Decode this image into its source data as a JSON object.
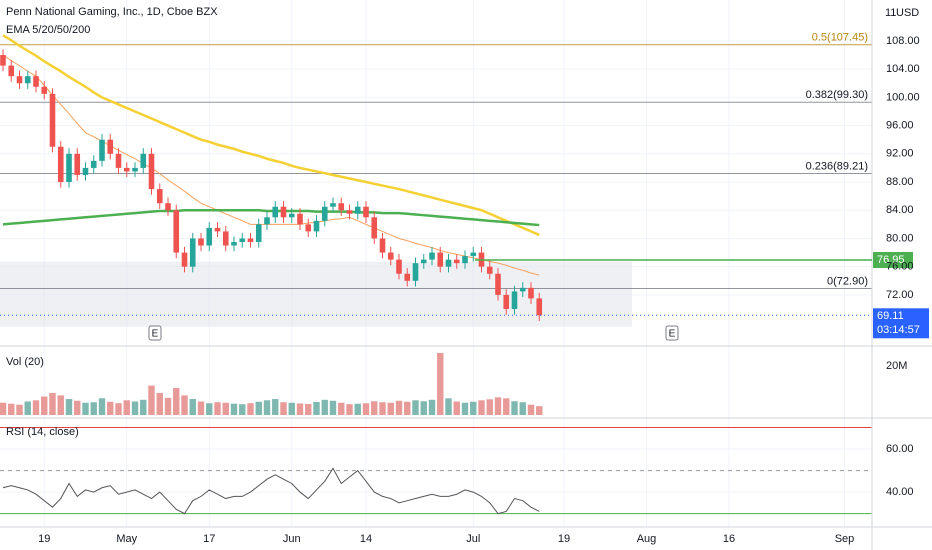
{
  "time_axis": {
    "categories": [
      null,
      null,
      null,
      null,
      null,
      "19",
      null,
      null,
      null,
      null,
      null,
      null,
      null,
      null,
      null,
      "May",
      null,
      null,
      null,
      null,
      null,
      null,
      null,
      null,
      null,
      "17",
      null,
      null,
      null,
      null,
      null,
      null,
      null,
      null,
      null,
      "Jun",
      null,
      null,
      null,
      null,
      null,
      null,
      null,
      null,
      "14",
      null,
      null,
      null,
      null,
      null,
      null,
      null,
      null,
      null,
      null,
      null,
      null,
      "Jul",
      null,
      null,
      null,
      null,
      null,
      null,
      null,
      null,
      null,
      null,
      "19",
      null,
      null,
      null,
      null,
      null,
      null,
      null,
      null,
      null,
      "Aug",
      null,
      null,
      null,
      null,
      null,
      null,
      null,
      null,
      null,
      "16",
      null,
      null,
      null,
      null,
      null,
      null,
      null,
      null,
      null,
      null,
      null,
      null,
      null,
      "Sep",
      null,
      null,
      null,
      null,
      null
    ]
  },
  "chart_data": [
    {
      "type": "candlestick",
      "title": "Penn National Gaming, Inc., 1D, Cboe BZX",
      "subtitle": "EMA 5/20/50/200",
      "badge": "11",
      "currency": "USD",
      "up_color": "#26a69a",
      "down_color": "#ef5350",
      "open": [
        106,
        104.5,
        103,
        102,
        103,
        101.5,
        100.5,
        93,
        88,
        92,
        89,
        90,
        91,
        94,
        92,
        90,
        89.5,
        90,
        92,
        87,
        85,
        84,
        78,
        76,
        80,
        79,
        81.5,
        81,
        79,
        79.5,
        80,
        79.5,
        82,
        83,
        84.5,
        83,
        83.5,
        82,
        81,
        82.5,
        84.5,
        85,
        84,
        83.5,
        84.5,
        83,
        80,
        78,
        77,
        75,
        74,
        76.5,
        77,
        78,
        76,
        77,
        76.5,
        77.5,
        78,
        76,
        75,
        72,
        70,
        72.5,
        73,
        71.5
      ],
      "high": [
        106.8,
        105.3,
        103.8,
        103.8,
        103.8,
        102.3,
        101.3,
        93.8,
        92.8,
        92.8,
        90.8,
        91.8,
        94.8,
        94.8,
        92.8,
        90.8,
        90.8,
        92.8,
        92.8,
        87.8,
        85.8,
        84.8,
        78.8,
        80.8,
        80.8,
        82.3,
        82.3,
        81.8,
        80.3,
        80.8,
        80.8,
        82.8,
        83.8,
        85.3,
        85.3,
        84.3,
        84.3,
        82.8,
        83.3,
        85.3,
        85.8,
        85.8,
        84.8,
        85.3,
        85.3,
        83.8,
        80.8,
        78.8,
        77.8,
        75.8,
        77.3,
        77.8,
        78.8,
        78.8,
        77.8,
        77.8,
        78.3,
        78.8,
        78.8,
        76.8,
        75.8,
        72.8,
        73.3,
        73.8,
        73.8,
        72.3
      ],
      "low": [
        103.7,
        102.2,
        101.2,
        101.2,
        100.7,
        99.7,
        92.2,
        87.2,
        87.2,
        88.2,
        88.2,
        89.2,
        90.2,
        91.2,
        89.2,
        88.7,
        88.7,
        89.2,
        86.2,
        84.2,
        83.2,
        77.2,
        75.2,
        75.2,
        78.2,
        78.2,
        80.2,
        78.2,
        78.2,
        78.7,
        78.7,
        78.7,
        81.2,
        82.2,
        82.2,
        82.2,
        81.2,
        80.2,
        80.2,
        81.7,
        83.7,
        83.2,
        82.7,
        82.7,
        82.2,
        79.2,
        77.2,
        76.2,
        74.2,
        73.2,
        73.2,
        75.7,
        76.2,
        75.2,
        75.2,
        75.7,
        75.7,
        76.7,
        75.2,
        74.2,
        71.2,
        69.2,
        69.2,
        71.7,
        70.7,
        68.3
      ],
      "close": [
        104.5,
        103,
        102,
        103,
        101.5,
        100.5,
        93,
        88,
        92,
        89,
        90,
        91,
        94,
        92,
        90,
        89.5,
        90,
        92,
        87,
        85,
        84,
        78,
        76,
        80,
        79,
        81.5,
        81,
        79,
        79.5,
        80,
        79.5,
        82,
        83,
        84.5,
        83,
        83.5,
        82,
        81,
        82.5,
        84.5,
        85,
        84,
        83.5,
        84.5,
        83,
        80,
        78,
        77,
        75,
        74,
        76.5,
        77,
        78,
        76,
        77,
        76.5,
        77.5,
        78,
        76,
        75,
        72,
        70,
        72.5,
        73,
        71.5,
        69.11
      ],
      "series": [
        {
          "color": "#f7a15e",
          "values": [
            106,
            105.2,
            104.5,
            103.7,
            103,
            101.7,
            100.3,
            99,
            97.7,
            96.3,
            95,
            94.4,
            93.8,
            93.1,
            92.5,
            91.9,
            91.3,
            90.6,
            90,
            89.2,
            88.3,
            87.5,
            86.7,
            85.8,
            85,
            84.5,
            84,
            83.5,
            83,
            82.5,
            82,
            82,
            82,
            82,
            82,
            82,
            82,
            82.2,
            82.3,
            82.5,
            82.7,
            82.8,
            83,
            82.5,
            82,
            81.5,
            81,
            80.5,
            80,
            79.7,
            79.3,
            79,
            78.7,
            78.3,
            78,
            77.75,
            77.5,
            77.25,
            77,
            76.75,
            76.5,
            76.2,
            75.8,
            75.5,
            75.1,
            74.8
          ]
        },
        {
          "color": "#f5d033",
          "values": [
            108.8,
            108.1,
            107.3,
            106.6,
            105.9,
            105.1,
            104.4,
            103.7,
            102.9,
            102.2,
            101.5,
            100.7,
            100.0,
            99.5,
            99.0,
            98.5,
            98.0,
            97.5,
            97.0,
            96.5,
            96.0,
            95.5,
            95.0,
            94.5,
            94.0,
            93.7,
            93.3,
            93.0,
            92.7,
            92.3,
            92.0,
            91.7,
            91.3,
            91.0,
            90.7,
            90.3,
            90.0,
            89.75,
            89.5,
            89.25,
            89.0,
            88.75,
            88.5,
            88.25,
            88.0,
            87.75,
            87.5,
            87.25,
            87.0,
            86.7,
            86.4,
            86.1,
            85.8,
            85.5,
            85.2,
            84.9,
            84.6,
            84.3,
            84.0,
            83.5,
            83.0,
            82.5,
            82.0,
            81.5,
            81.0,
            80.5
          ]
        },
        {
          "color": "#4caf50",
          "values": [
            82.0,
            82.1,
            82.2,
            82.3,
            82.4,
            82.5,
            82.6,
            82.7,
            82.8,
            82.9,
            83.0,
            83.1,
            83.2,
            83.3,
            83.4,
            83.5,
            83.6,
            83.7,
            83.8,
            83.9,
            83.9,
            83.9,
            84.0,
            84.0,
            84.0,
            84.0,
            84.0,
            84.0,
            84.0,
            84.0,
            84.0,
            84.0,
            83.9,
            83.9,
            83.9,
            83.9,
            83.9,
            83.9,
            83.8,
            83.8,
            83.8,
            83.8,
            83.8,
            83.7,
            83.7,
            83.7,
            83.6,
            83.6,
            83.6,
            83.5,
            83.4,
            83.3,
            83.2,
            83.1,
            83.0,
            82.9,
            82.8,
            82.7,
            82.6,
            82.5,
            82.4,
            82.3,
            82.2,
            82.1,
            82.0,
            81.9
          ]
        }
      ],
      "ylim": [
        64.9,
        113.8
      ],
      "yticks": [
        {
          "value": 108,
          "label": "108.00"
        },
        {
          "value": 104,
          "label": "104.00"
        },
        {
          "value": 100,
          "label": "100.00"
        },
        {
          "value": 96,
          "label": "96.00"
        },
        {
          "value": 92,
          "label": "92.00"
        },
        {
          "value": 88,
          "label": "88.00"
        },
        {
          "value": 84,
          "label": "84.00"
        },
        {
          "value": 80,
          "label": "80.00"
        },
        {
          "value": 76,
          "label": "76.00"
        },
        {
          "value": 72,
          "label": "72.00"
        }
      ],
      "fib_levels": [
        {
          "label": "0.5(107.45)",
          "value": 107.45,
          "color": "#b8860b"
        },
        {
          "label": "0.382(99.30)",
          "value": 99.3,
          "color": "#787b86"
        },
        {
          "label": "0.236(89.21)",
          "value": 89.21,
          "color": "#787b86"
        },
        {
          "label": "0(72.90)",
          "value": 72.9,
          "color": "#787b86"
        }
      ],
      "hline": {
        "value": 76.95,
        "color": "#4caf50"
      },
      "zone": {
        "low": 67.5,
        "high": 76.7
      },
      "last_price": {
        "value": 69.11,
        "countdown": "03:14:57",
        "color": "#2962ff"
      },
      "earnings_markers": [
        "E",
        "E"
      ],
      "grid": true
    },
    {
      "type": "bar",
      "title": "Vol (20)",
      "values": [
        5000000,
        4600000,
        4200000,
        5500000,
        6000000,
        7500000,
        9000000,
        8000000,
        6500000,
        5800000,
        5000000,
        5200000,
        6800000,
        5400000,
        4800000,
        6000000,
        5500000,
        6200000,
        12000000,
        9000000,
        7000000,
        11000000,
        8000000,
        6500000,
        5500000,
        4800000,
        5200000,
        5000000,
        4600000,
        4400000,
        4800000,
        5400000,
        6000000,
        6500000,
        5200000,
        5000000,
        4700000,
        4500000,
        5300000,
        6200000,
        5800000,
        5000000,
        4400000,
        4600000,
        4800000,
        5600000,
        5200000,
        5000000,
        5800000,
        5400000,
        6000000,
        5600000,
        6200000,
        25300000,
        6800000,
        5500000,
        5000000,
        5400000,
        6000000,
        6400000,
        7200000,
        6800000,
        5600000,
        5200000,
        4200000,
        3600000
      ],
      "up_color": "#7fb8b0",
      "down_color": "#e89a98",
      "ylim": [
        0,
        27300000
      ],
      "yticks": [
        {
          "value": 20000000,
          "label": "20M"
        }
      ]
    },
    {
      "type": "line",
      "title": "RSI (14, close)",
      "color": "#555555",
      "values": [
        42,
        43,
        42,
        41,
        39,
        36,
        33,
        37,
        44,
        38,
        41,
        40,
        42,
        43,
        39,
        40,
        41,
        39,
        37,
        40,
        36,
        32,
        30,
        36,
        38,
        41,
        39,
        37,
        38,
        38,
        40,
        43,
        46,
        48,
        46,
        44,
        40,
        37,
        41,
        45,
        51,
        44,
        47,
        50,
        45,
        40,
        38,
        37,
        35,
        36,
        37,
        38,
        39,
        38,
        38,
        39,
        41,
        40,
        38,
        35,
        30,
        31,
        37,
        36,
        33,
        31
      ],
      "ylim": [
        24.7,
        73.5
      ],
      "yticks": [
        {
          "value": 60,
          "label": "60.00"
        },
        {
          "value": 40,
          "label": "40.00"
        }
      ],
      "bands": {
        "upper": 70,
        "middle": 50,
        "lower": 30,
        "upper_color": "#e04040",
        "lower_color": "#4caf50"
      }
    }
  ]
}
